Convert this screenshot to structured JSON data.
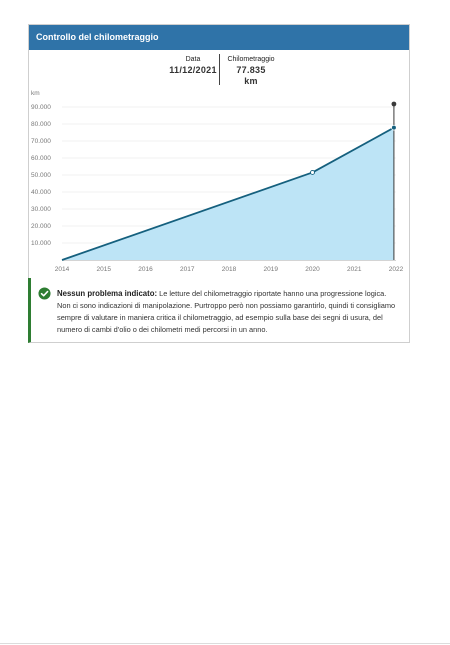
{
  "panel": {
    "title": "Controllo del chilometraggio"
  },
  "tooltip": {
    "date_label": "Data",
    "date_value": "11/12/2021",
    "km_label": "Chilometraggio",
    "km_value": "77.835",
    "km_unit": "km"
  },
  "chart_data": {
    "type": "area",
    "title": "",
    "xlabel": "",
    "ylabel": "km",
    "x_ticks": [
      "2014",
      "2015",
      "2016",
      "2017",
      "2018",
      "2019",
      "2020",
      "2021",
      "2022"
    ],
    "y_ticks": [
      10000,
      20000,
      30000,
      40000,
      50000,
      60000,
      70000,
      80000,
      90000
    ],
    "y_tick_labels": [
      "10.000",
      "20.000",
      "30.000",
      "40.000",
      "50.000",
      "60.000",
      "70.000",
      "80.000",
      "90.000"
    ],
    "xlim": [
      2014,
      2022
    ],
    "ylim": [
      0,
      90000
    ],
    "series": [
      {
        "x": [
          2014.0,
          2020.0,
          2021.95
        ],
        "values": [
          0,
          51500,
          77835
        ]
      }
    ],
    "colors": {
      "line": "#15607e",
      "fill": "#bde4f6",
      "marker": "#15607e",
      "cursor": "#3a3a3a"
    },
    "grid": true
  },
  "notice": {
    "title": "Nessun problema indicato:",
    "body": " Le letture del chilometraggio riportate hanno una progressione logica. Non ci sono indicazioni di manipolazione. Purtroppo però non possiamo garantirlo, quindi ti consigliamo sempre di valutare in maniera critica il chilometraggio, ad esempio sulla base dei segni di usura, del numero di cambi d'olio o dei chilometri medi percorsi in un anno.",
    "icon": "check-circle-icon",
    "color": "#2e7d32"
  }
}
